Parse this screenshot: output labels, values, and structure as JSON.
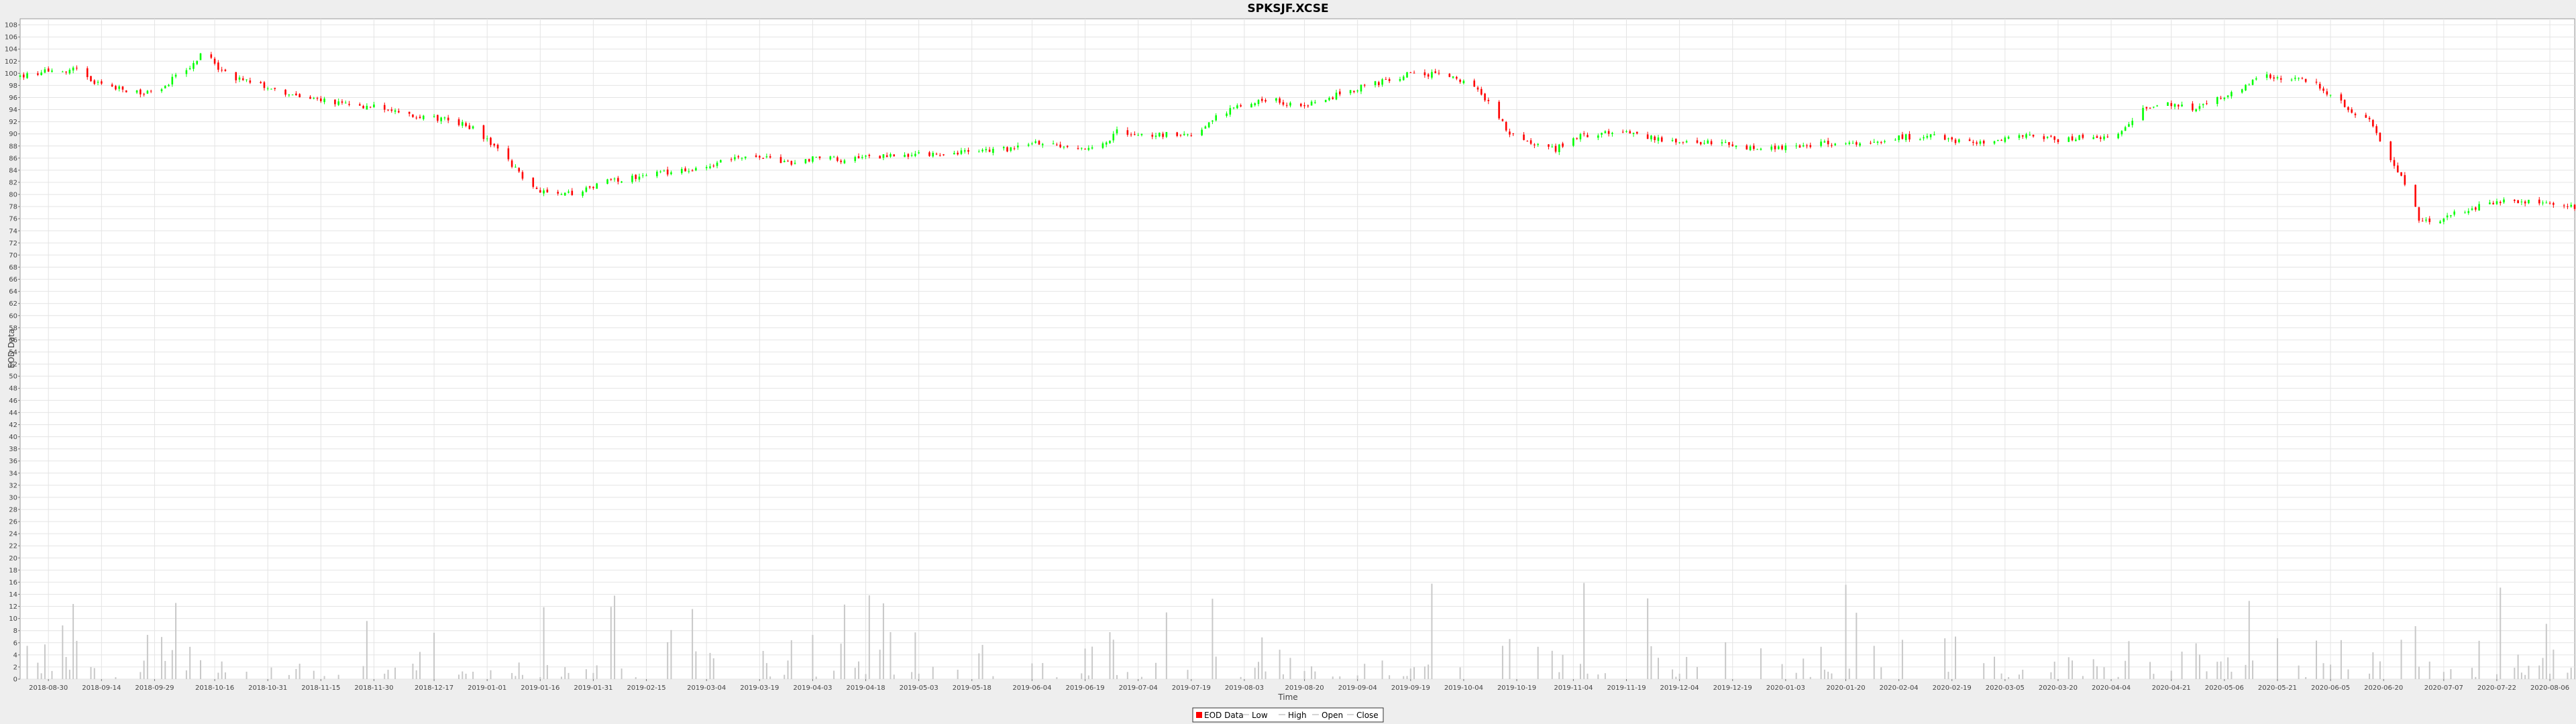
{
  "chart_data": {
    "type": "candlestick",
    "title": "SPKSJF.XCSE",
    "xlabel": "Time",
    "ylabel": "EOD Data",
    "ylim": [
      0,
      109
    ],
    "y_ticks": [
      0,
      2,
      4,
      6,
      8,
      10,
      12,
      14,
      16,
      18,
      20,
      22,
      24,
      26,
      28,
      30,
      32,
      34,
      36,
      38,
      40,
      42,
      44,
      46,
      48,
      50,
      52,
      54,
      56,
      58,
      60,
      62,
      64,
      66,
      68,
      70,
      72,
      74,
      76,
      78,
      80,
      82,
      84,
      86,
      88,
      90,
      92,
      94,
      96,
      98,
      100,
      102,
      104,
      106,
      108
    ],
    "x_range": [
      "2018-08-22",
      "2020-08-13"
    ],
    "x_tick_labels": [
      "2018-08-30",
      "2018-09-14",
      "2018-09-29",
      "2018-10-16",
      "2018-10-31",
      "2018-11-15",
      "2018-11-30",
      "2018-12-17",
      "2019-01-01",
      "2019-01-16",
      "2019-01-31",
      "2019-02-15",
      "2019-03-04",
      "2019-03-19",
      "2019-04-03",
      "2019-04-18",
      "2019-05-03",
      "2019-05-18",
      "2019-06-04",
      "2019-06-19",
      "2019-07-04",
      "2019-07-19",
      "2019-08-03",
      "2019-08-20",
      "2019-09-04",
      "2019-09-19",
      "2019-10-04",
      "2019-10-19",
      "2019-11-04",
      "2019-11-19",
      "2019-12-04",
      "2019-12-19",
      "2020-01-03",
      "2020-01-20",
      "2020-02-04",
      "2020-02-19",
      "2020-03-05",
      "2020-03-20",
      "2020-04-04",
      "2020-04-21",
      "2020-05-06",
      "2020-05-21",
      "2020-06-05",
      "2020-06-20",
      "2020-07-07",
      "2020-07-22",
      "2020-08-06"
    ],
    "price_anchors": [
      [
        "2018-08-22",
        99.5
      ],
      [
        "2018-08-28",
        100.2
      ],
      [
        "2018-09-05",
        100.4
      ],
      [
        "2018-09-08",
        100.8
      ],
      [
        "2018-09-12",
        98.5
      ],
      [
        "2018-09-18",
        97.5
      ],
      [
        "2018-09-26",
        96.8
      ],
      [
        "2018-10-01",
        97.5
      ],
      [
        "2018-10-05",
        99.5
      ],
      [
        "2018-10-10",
        101.5
      ],
      [
        "2018-10-13",
        104.0
      ],
      [
        "2018-10-17",
        101.0
      ],
      [
        "2018-10-22",
        99.0
      ],
      [
        "2018-10-30",
        98.0
      ],
      [
        "2018-11-10",
        96.0
      ],
      [
        "2018-11-20",
        95.0
      ],
      [
        "2018-11-30",
        94.5
      ],
      [
        "2018-12-10",
        93.0
      ],
      [
        "2018-12-20",
        92.5
      ],
      [
        "2018-12-28",
        91.0
      ],
      [
        "2019-01-03",
        88.0
      ],
      [
        "2019-01-08",
        85.0
      ],
      [
        "2019-01-13",
        81.5
      ],
      [
        "2019-01-16",
        80.5
      ],
      [
        "2019-01-22",
        80.0
      ],
      [
        "2019-01-28",
        80.5
      ],
      [
        "2019-02-03",
        82.0
      ],
      [
        "2019-02-10",
        82.8
      ],
      [
        "2019-02-20",
        83.5
      ],
      [
        "2019-03-01",
        84.0
      ],
      [
        "2019-03-07",
        85.0
      ],
      [
        "2019-03-12",
        86.5
      ],
      [
        "2019-03-20",
        86.0
      ],
      [
        "2019-03-28",
        85.0
      ],
      [
        "2019-04-06",
        86.5
      ],
      [
        "2019-04-12",
        85.5
      ],
      [
        "2019-04-20",
        86.2
      ],
      [
        "2019-05-02",
        86.5
      ],
      [
        "2019-05-15",
        87.0
      ],
      [
        "2019-05-29",
        87.5
      ],
      [
        "2019-06-05",
        88.5
      ],
      [
        "2019-06-12",
        88.0
      ],
      [
        "2019-06-20",
        87.8
      ],
      [
        "2019-06-25",
        88.5
      ],
      [
        "2019-06-28",
        90.5
      ],
      [
        "2019-07-03",
        89.5
      ],
      [
        "2019-07-12",
        90.0
      ],
      [
        "2019-07-18",
        89.5
      ],
      [
        "2019-07-22",
        91.0
      ],
      [
        "2019-07-28",
        93.5
      ],
      [
        "2019-08-04",
        95.0
      ],
      [
        "2019-08-12",
        95.5
      ],
      [
        "2019-08-18",
        94.5
      ],
      [
        "2019-08-25",
        95.5
      ],
      [
        "2019-09-01",
        97.0
      ],
      [
        "2019-09-10",
        98.5
      ],
      [
        "2019-09-18",
        99.8
      ],
      [
        "2019-09-26",
        99.8
      ],
      [
        "2019-10-03",
        99.0
      ],
      [
        "2019-10-08",
        97.0
      ],
      [
        "2019-10-10",
        95.5
      ],
      [
        "2019-10-13",
        94.0
      ],
      [
        "2019-10-17",
        90.0
      ],
      [
        "2019-10-24",
        88.5
      ],
      [
        "2019-10-30",
        87.5
      ],
      [
        "2019-11-05",
        89.5
      ],
      [
        "2019-11-15",
        90.5
      ],
      [
        "2019-11-25",
        89.5
      ],
      [
        "2019-12-05",
        88.5
      ],
      [
        "2019-12-15",
        88.5
      ],
      [
        "2019-12-22",
        87.5
      ],
      [
        "2020-01-05",
        88.0
      ],
      [
        "2020-01-15",
        88.5
      ],
      [
        "2020-01-25",
        88.0
      ],
      [
        "2020-02-05",
        89.5
      ],
      [
        "2020-02-15",
        89.5
      ],
      [
        "2020-02-23",
        88.5
      ],
      [
        "2020-03-05",
        89.0
      ],
      [
        "2020-03-12",
        90.0
      ],
      [
        "2020-03-20",
        89.0
      ],
      [
        "2020-03-28",
        89.5
      ],
      [
        "2020-04-04",
        89.0
      ],
      [
        "2020-04-08",
        91.0
      ],
      [
        "2020-04-13",
        94.5
      ],
      [
        "2020-04-22",
        95.0
      ],
      [
        "2020-04-28",
        94.0
      ],
      [
        "2020-05-05",
        96.0
      ],
      [
        "2020-05-12",
        98.0
      ],
      [
        "2020-05-18",
        99.5
      ],
      [
        "2020-05-25",
        99.0
      ],
      [
        "2020-05-31",
        98.5
      ],
      [
        "2020-06-06",
        96.0
      ],
      [
        "2020-06-12",
        93.5
      ],
      [
        "2020-06-16",
        92.0
      ],
      [
        "2020-06-20",
        88.0
      ],
      [
        "2020-06-24",
        84.0
      ],
      [
        "2020-06-27",
        81.0
      ],
      [
        "2020-06-30",
        76.0
      ],
      [
        "2020-07-04",
        75.0
      ],
      [
        "2020-07-08",
        76.5
      ],
      [
        "2020-07-14",
        77.5
      ],
      [
        "2020-07-20",
        78.5
      ],
      [
        "2020-07-29",
        79.0
      ],
      [
        "2020-08-05",
        78.5
      ],
      [
        "2020-08-13",
        78.0
      ]
    ],
    "series": [
      {
        "name": "EOD Data",
        "color": "#ff0000",
        "up_color": "#00ff00",
        "down_color": "#ff0000"
      },
      {
        "name": "Low"
      },
      {
        "name": "High"
      },
      {
        "name": "Open"
      },
      {
        "name": "Close"
      }
    ],
    "volume_color": "#c8c8c8",
    "grid": true,
    "legend_position": "bottom-center"
  }
}
